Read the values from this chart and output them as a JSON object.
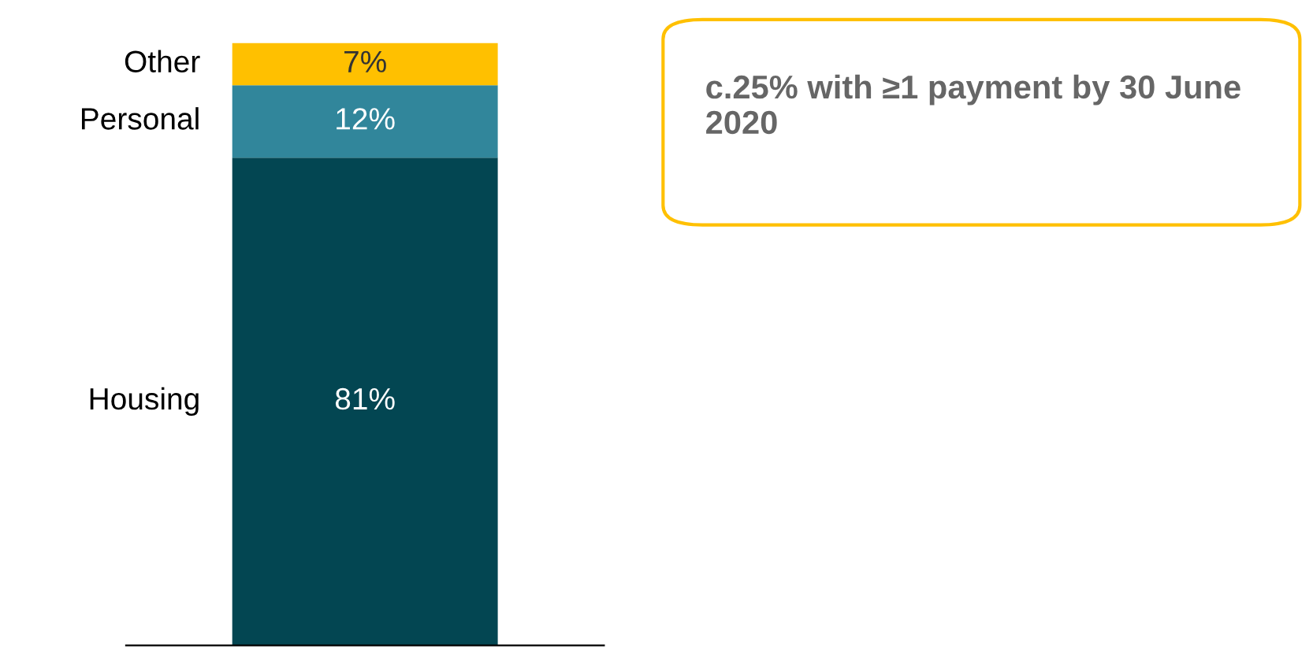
{
  "chart_data": {
    "type": "bar",
    "stacked": true,
    "categories": [
      null
    ],
    "series": [
      {
        "name": "Housing",
        "color": "#034652",
        "values": [
          81
        ],
        "value_labels": [
          "81%"
        ]
      },
      {
        "name": "Personal",
        "color": "#31869b",
        "values": [
          12
        ],
        "value_labels": [
          "12%"
        ]
      },
      {
        "name": "Other",
        "color": "#ffc000",
        "values": [
          7
        ],
        "value_labels": [
          "7%"
        ]
      }
    ],
    "legend": false,
    "annotations": [
      "c.25% with ≥1 payment by 30 June 2020"
    ]
  }
}
